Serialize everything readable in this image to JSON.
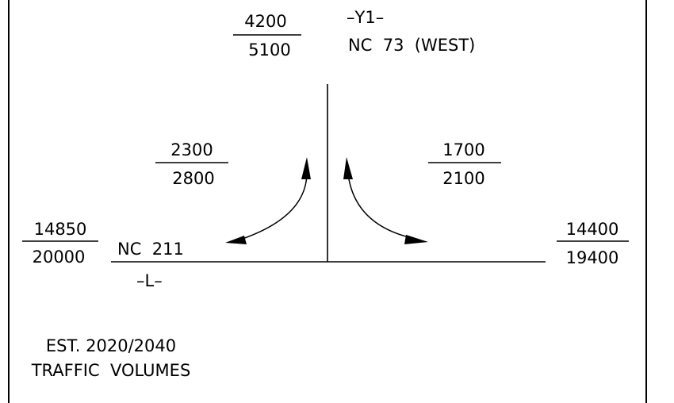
{
  "north_leg": {
    "volume_2020": "4200",
    "volume_2040": "5100",
    "route_marker": "–Y1–",
    "route_name": "NC  73  (WEST)"
  },
  "left_turn_movement": {
    "volume_2020": "2300",
    "volume_2040": "2800"
  },
  "right_turn_movement": {
    "volume_2020": "1700",
    "volume_2040": "2100"
  },
  "west_leg": {
    "volume_2020": "14850",
    "volume_2040": "20000",
    "route_name": "NC  211",
    "route_marker": "–L–"
  },
  "east_leg": {
    "volume_2020": "14400",
    "volume_2040": "19400"
  },
  "footer": {
    "line1": "EST. 2020/2040",
    "line2": "TRAFFIC  VOLUMES"
  }
}
